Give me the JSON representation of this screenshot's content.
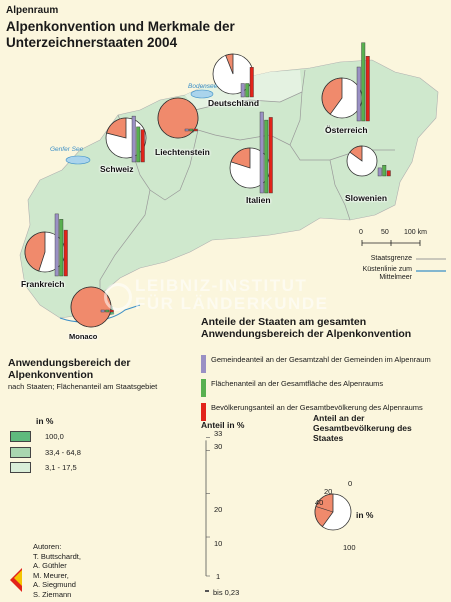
{
  "header": {
    "region": "Alpenraum",
    "title": "Alpenkonvention und Merkmale der Unterzeichnerstaaten 2004"
  },
  "map": {
    "countries": [
      {
        "name": "Frankreich",
        "application_class": "33,4 - 64,8",
        "pie_share_percent": 45,
        "bars": {
          "gemeinden": 23,
          "flaeche": 21,
          "bevoelkerung": 17
        }
      },
      {
        "name": "Monaco",
        "application_class": "100,0",
        "pie_share_percent": 100,
        "bars": {
          "gemeinden": 0.2,
          "flaeche": 0.2,
          "bevoelkerung": 0.2
        }
      },
      {
        "name": "Schweiz",
        "application_class": "33,4 - 64,8",
        "pie_share_percent": 21,
        "bars": {
          "gemeinden": 17,
          "flaeche": 13,
          "bevoelkerung": 12
        }
      },
      {
        "name": "Liechtenstein",
        "application_class": "100,0",
        "pie_share_percent": 100,
        "bars": {
          "gemeinden": 0.23,
          "flaeche": 0.23,
          "bevoelkerung": 0.23
        }
      },
      {
        "name": "Deutschland",
        "application_class": "3,1 - 17,5",
        "pie_share_percent": 6,
        "bars": {
          "gemeinden": 5,
          "flaeche": 5,
          "bevoelkerung": 11
        }
      },
      {
        "name": "Italien",
        "application_class": "33,4 - 64,8",
        "pie_share_percent": 20,
        "bars": {
          "gemeinden": 30,
          "flaeche": 27,
          "bevoelkerung": 28
        }
      },
      {
        "name": "Österreich",
        "application_class": "33,4 - 64,8",
        "pie_share_percent": 40,
        "bars": {
          "gemeinden": 20,
          "flaeche": 29,
          "bevoelkerung": 24
        }
      },
      {
        "name": "Slowenien",
        "application_class": "33,4 - 64,8",
        "pie_share_percent": 15,
        "bars": {
          "gemeinden": 3,
          "flaeche": 4,
          "bevoelkerung": 2
        }
      }
    ],
    "lakes": [
      "Bodensee",
      "Genfer See"
    ],
    "scale": {
      "ticks": [
        "0",
        "50",
        "100 km"
      ]
    },
    "line_legend": {
      "border": "Staatsgrenze",
      "coast": "Küstenlinie zum Mittelmeer"
    },
    "watermark": {
      "line1": "LEIBNIZ-INSTITUT",
      "line2": "FÜR LÄNDERKUNDE"
    }
  },
  "legend_application": {
    "title": "Anwendungsbereich der Alpenkonvention",
    "subtitle": "nach Staaten; Flächenanteil am Staatsgebiet",
    "unit": "in %",
    "classes": [
      {
        "label": "100,0",
        "color": "#5fba7d"
      },
      {
        "label": "33,4 - 64,8",
        "color": "#a9d6b0"
      },
      {
        "label": "3,1 - 17,5",
        "color": "#d9eed8"
      }
    ]
  },
  "legend_bars": {
    "title": "Anteile der Staaten am gesamten Anwendungsbereich der Alpenkonvention",
    "items": [
      {
        "label": "Gemeindeanteil an der Gesamtzahl der Gemeinden im Alpenraum",
        "color": "#9a90c4"
      },
      {
        "label": "Flächenanteil an der Gesamtfläche des Alpenraums",
        "color": "#58b04f"
      },
      {
        "label": "Bevölkerungsanteil an der Gesamtbevölkerung des Alpenraums",
        "color": "#e2231a"
      }
    ],
    "scale_title": "Anteil in %",
    "scale_ticks": [
      "33",
      "30",
      "20",
      "10",
      "1"
    ],
    "min_note": "bis 0,23"
  },
  "legend_pie": {
    "title": "Anteil an der Gesamtbevölkerung des Staates",
    "unit": "in %",
    "ticks": [
      "0",
      "20",
      "40",
      "100"
    ],
    "colors": {
      "share": "#f08a6c",
      "rest": "#ffffff"
    }
  },
  "authors": {
    "heading": "Autoren:",
    "names": [
      "T. Buttschardt,",
      "A. Güthler",
      "M. Meurer,",
      "A. Siegmund",
      "S. Ziemann"
    ]
  }
}
